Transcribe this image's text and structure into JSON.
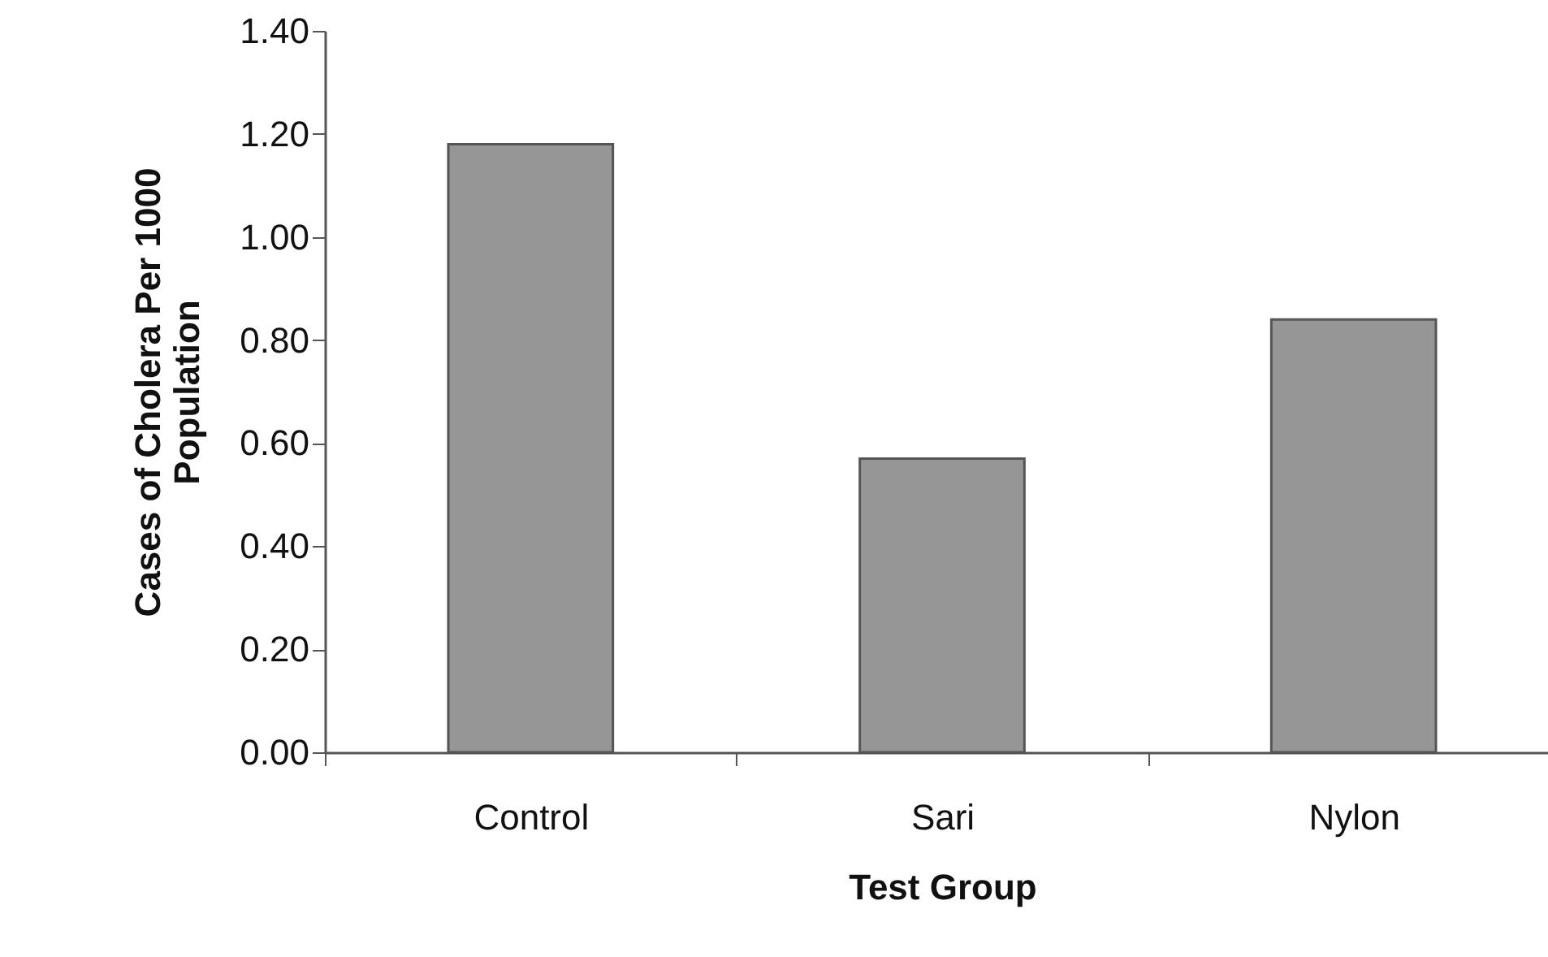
{
  "chart_data": {
    "type": "bar",
    "xlabel": "Test Group",
    "ylabel": "Cases of Cholera Per 1000 Population",
    "categories": [
      "Control",
      "Sari",
      "Nylon"
    ],
    "values": [
      1.18,
      0.57,
      0.84
    ],
    "color": "#969696",
    "ylim": [
      0,
      1.4
    ],
    "yticks": [
      {
        "value": 0,
        "label": "0.00"
      },
      {
        "value": 0.2,
        "label": "0.20"
      },
      {
        "value": 0.4,
        "label": "0.40"
      },
      {
        "value": 0.6,
        "label": "0.60"
      },
      {
        "value": 0.8,
        "label": "0.80"
      },
      {
        "value": 1.0,
        "label": "1.00"
      },
      {
        "value": 1.2,
        "label": "1.20"
      },
      {
        "value": 1.4,
        "label": "1.40"
      }
    ],
    "grid": false
  }
}
